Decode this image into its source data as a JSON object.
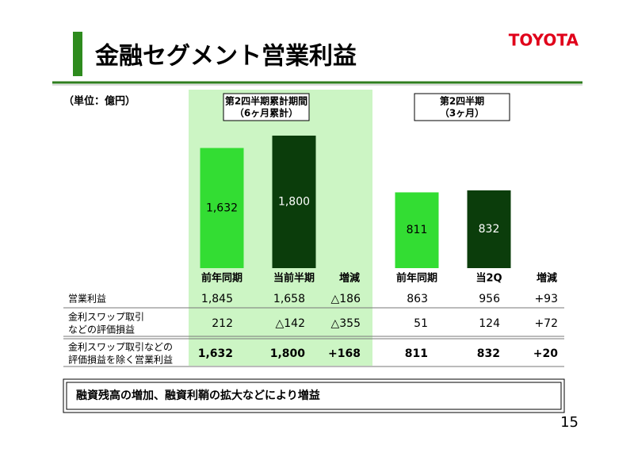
{
  "header": {
    "title": "金融セグメント営業利益",
    "logo": "TOYOTA",
    "unit": "（単位：億円）"
  },
  "chart_data": [
    {
      "type": "bar",
      "title": "第2四半期累計期間",
      "subtitle": "（6ヶ月累計）",
      "categories": [
        "前年同期",
        "当前半期"
      ],
      "values": [
        1632,
        1800
      ],
      "value_labels": [
        "1,632",
        "1,800"
      ],
      "colors": [
        "#33dd33",
        "#0b3d0b"
      ]
    },
    {
      "type": "bar",
      "title": "第2四半期",
      "subtitle": "（3ヶ月）",
      "categories": [
        "前年同期",
        "当2Q"
      ],
      "values": [
        811,
        832
      ],
      "value_labels": [
        "811",
        "832"
      ],
      "colors": [
        "#33dd33",
        "#0b3d0b"
      ]
    }
  ],
  "table": {
    "change_headers": [
      "増減",
      "増減"
    ],
    "rows": [
      {
        "label": [
          "営業利益"
        ],
        "cells": [
          "1,845",
          "1,658",
          "△186",
          "863",
          "956",
          "+93"
        ]
      },
      {
        "label": [
          "金利スワップ取引",
          "などの評価損益"
        ],
        "cells": [
          "212",
          "△142",
          "△355",
          "51",
          "124",
          "+72"
        ]
      },
      {
        "label": [
          "金利スワップ取引などの",
          "評価損益を除く営業利益"
        ],
        "cells": [
          "1,632",
          "1,800",
          "+168",
          "811",
          "832",
          "+20"
        ]
      }
    ]
  },
  "note": "融資残高の増加、融資利鞘の拡大などにより増益",
  "page_number": "15"
}
